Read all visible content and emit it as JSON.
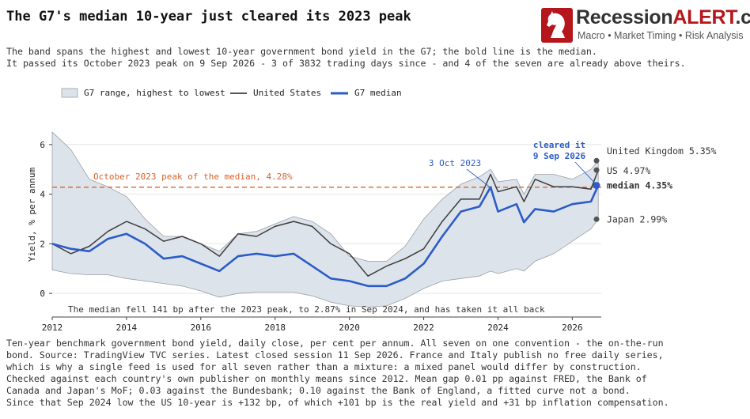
{
  "header": {
    "title": "The G7's median 10-year just cleared its 2023 peak",
    "subtitle_lines": [
      "The band spans the highest and lowest 10-year government bond yield in the G7; the bold line is the median.",
      "It passed its October 2023 peak on 9 Sep 2026 - 3 of 3832 trading days since - and 4 of the seven are already above theirs."
    ]
  },
  "logo": {
    "name_part1": "Recession",
    "name_part2": "ALERT",
    "name_part3": ".com",
    "tagline": "Macro • Market Timing • Risk Analysis"
  },
  "footer_lines": [
    "Ten-year benchmark government bond yield, daily close, per cent per annum. All seven on one convention - the on-the-run",
    "bond. Source: TradingView TVC series. Latest closed session 11 Sep 2026. France and Italy publish no free daily series,",
    "which is why a single feed is used for all seven rather than a mixture: a mixed panel would differ by construction.",
    "Checked against each country's own publisher on monthly means since 2012. Mean gap 0.01 pp against FRED, the Bank of",
    "Canada and Japan's MoF; 0.03 against the Bundesbank; 0.10 against the Bank of England, a fitted curve not a bond.",
    "Since that Sep 2024 low the US 10-year is +132 bp, of which +101 bp is the real yield and +31 bp inflation compensation."
  ],
  "chart_data": {
    "type": "line",
    "ylabel": "Yield, % per annum",
    "xlim": [
      2012,
      2026.78
    ],
    "ylim": [
      -0.95,
      7.3
    ],
    "x_ticks": [
      "2012",
      "2014",
      "2016",
      "2018",
      "2020",
      "2022",
      "2024",
      "2026"
    ],
    "y_ticks": [
      "0",
      "2",
      "4",
      "6"
    ],
    "legend": [
      "G7 range, highest to lowest",
      "United States",
      "G7 median"
    ],
    "legend_placement": "top-left",
    "colors": {
      "band": "#dde3ea",
      "band_edge": "#9aa0a6",
      "us": "#3d3d3d",
      "median": "#2b5cc8",
      "peak_line": "#d9622b",
      "marker": "#555555"
    },
    "x": [
      2012.0,
      2012.5,
      2013.0,
      2013.5,
      2014.0,
      2014.5,
      2015.0,
      2015.5,
      2016.0,
      2016.5,
      2017.0,
      2017.5,
      2018.0,
      2018.5,
      2019.0,
      2019.5,
      2020.0,
      2020.5,
      2021.0,
      2021.5,
      2022.0,
      2022.5,
      2023.0,
      2023.5,
      2023.8,
      2024.0,
      2024.5,
      2024.7,
      2025.0,
      2025.5,
      2026.0,
      2026.5,
      2026.7
    ],
    "series": [
      {
        "name": "G7 range, highest to lowest",
        "high": [
          6.5,
          5.8,
          4.6,
          4.3,
          3.9,
          3.0,
          2.3,
          2.3,
          2.0,
          1.7,
          2.4,
          2.5,
          2.8,
          3.1,
          2.9,
          2.4,
          1.5,
          1.3,
          1.3,
          1.9,
          3.0,
          3.8,
          4.4,
          4.7,
          5.0,
          4.5,
          4.6,
          4.0,
          4.8,
          4.8,
          4.6,
          5.0,
          5.35
        ],
        "low": [
          0.95,
          0.8,
          0.75,
          0.75,
          0.6,
          0.5,
          0.4,
          0.3,
          0.1,
          -0.15,
          0.0,
          0.05,
          0.05,
          0.05,
          -0.1,
          -0.35,
          -0.5,
          -0.55,
          -0.5,
          -0.2,
          0.2,
          0.5,
          0.6,
          0.7,
          0.9,
          0.8,
          1.0,
          0.9,
          1.3,
          1.6,
          2.1,
          2.6,
          2.99
        ]
      },
      {
        "name": "United States",
        "values": [
          2.0,
          1.6,
          1.9,
          2.5,
          2.9,
          2.6,
          2.1,
          2.3,
          2.0,
          1.5,
          2.4,
          2.3,
          2.7,
          2.9,
          2.7,
          2.0,
          1.6,
          0.7,
          1.1,
          1.4,
          1.8,
          2.9,
          3.8,
          3.8,
          4.8,
          4.1,
          4.3,
          3.7,
          4.6,
          4.3,
          4.3,
          4.2,
          4.97
        ]
      },
      {
        "name": "G7 median",
        "values": [
          2.0,
          1.8,
          1.7,
          2.2,
          2.4,
          2.0,
          1.4,
          1.5,
          1.2,
          0.9,
          1.5,
          1.6,
          1.5,
          1.6,
          1.1,
          0.6,
          0.5,
          0.3,
          0.3,
          0.6,
          1.2,
          2.3,
          3.3,
          3.5,
          4.28,
          3.3,
          3.6,
          2.87,
          3.4,
          3.3,
          3.6,
          3.7,
          4.35
        ]
      }
    ],
    "peak_line": {
      "value": 4.28,
      "label": "October 2023 peak of the median, 4.28%"
    },
    "annotations": {
      "peak_date": "3 Oct 2023",
      "cleared_line1": "cleared it",
      "cleared_line2": "9 Sep 2026",
      "bottom_note": "The median fell 141 bp after the 2023 peak, to 2.87% in Sep 2024, and has taken it all back"
    },
    "end_labels": {
      "uk": "United Kingdom 5.35%",
      "us": "US 4.97%",
      "median": "median 4.35%",
      "japan": "Japan 2.99%"
    },
    "end_values": {
      "uk": 5.35,
      "us": 4.97,
      "median": 4.35,
      "japan": 2.99
    },
    "cross_date": 2026.69,
    "peak_date_x": 2023.76
  }
}
